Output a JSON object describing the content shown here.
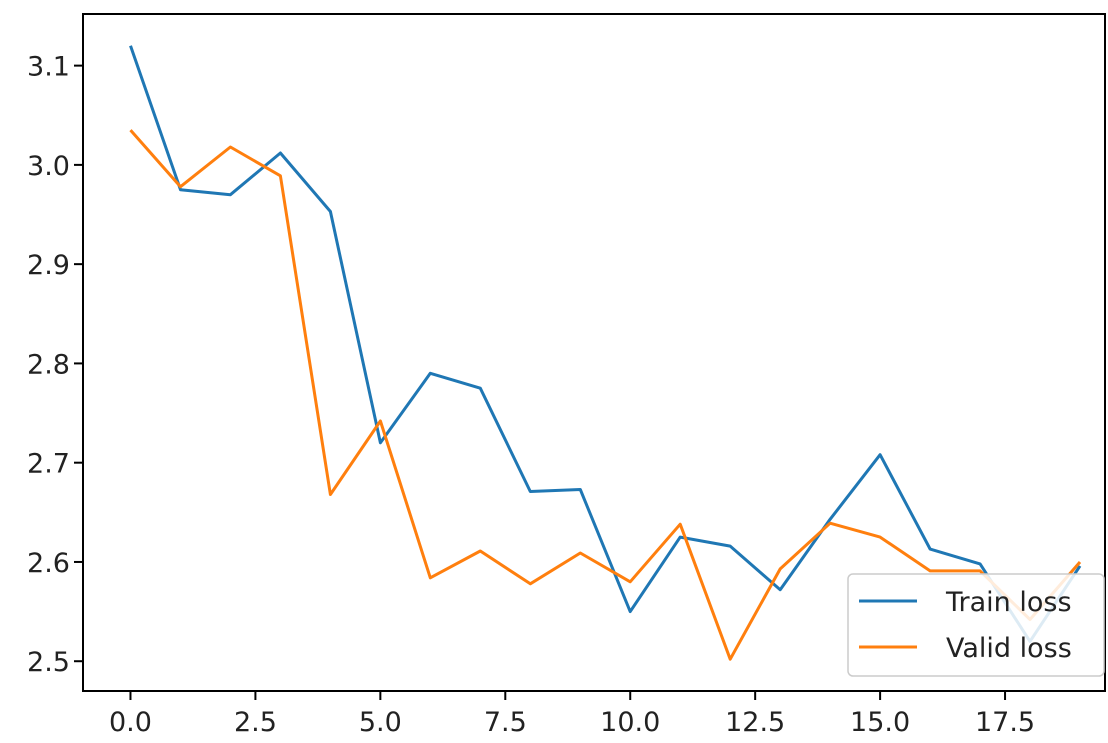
{
  "chart_data": {
    "type": "line",
    "title": "",
    "xlabel": "",
    "ylabel": "",
    "xlim": [
      -0.95,
      19.5
    ],
    "ylim": [
      2.47,
      3.152
    ],
    "x": [
      0,
      1,
      2,
      3,
      4,
      5,
      6,
      7,
      8,
      9,
      10,
      11,
      12,
      13,
      14,
      15,
      16,
      17,
      18,
      19
    ],
    "x_ticks": [
      0.0,
      2.5,
      5.0,
      7.5,
      10.0,
      12.5,
      15.0,
      17.5
    ],
    "x_tick_labels": [
      "0.0",
      "2.5",
      "5.0",
      "7.5",
      "10.0",
      "12.5",
      "15.0",
      "17.5"
    ],
    "y_ticks": [
      2.5,
      2.6,
      2.7,
      2.8,
      2.9,
      3.0,
      3.1
    ],
    "y_tick_labels": [
      "2.5",
      "2.6",
      "2.7",
      "2.8",
      "2.9",
      "3.0",
      "3.1"
    ],
    "grid": false,
    "legend_position": "lower-right",
    "series": [
      {
        "name": "Train loss",
        "color": "#1f77b4",
        "values": [
          3.12,
          2.975,
          2.97,
          3.012,
          2.953,
          2.72,
          2.79,
          2.775,
          2.671,
          2.673,
          2.55,
          2.625,
          2.616,
          2.572,
          2.643,
          2.708,
          2.613,
          2.598,
          2.52,
          2.596
        ]
      },
      {
        "name": "Valid loss",
        "color": "#ff7f0e",
        "values": [
          3.035,
          2.978,
          3.018,
          2.989,
          2.668,
          2.742,
          2.584,
          2.611,
          2.578,
          2.609,
          2.58,
          2.638,
          2.502,
          2.593,
          2.639,
          2.625,
          2.591,
          2.591,
          2.542,
          2.6
        ]
      }
    ]
  }
}
